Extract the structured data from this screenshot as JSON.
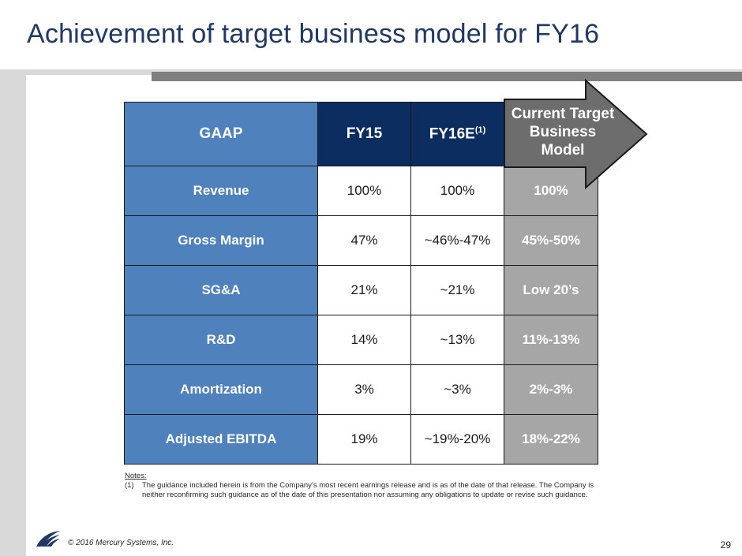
{
  "title": "Achievement of target business model for FY16",
  "table": {
    "headers": [
      "GAAP",
      "FY15",
      "FY16E",
      "Current Target Business Model"
    ],
    "header_superscript": "(1)",
    "target_header_lines": [
      "Current Target",
      "Business",
      "Model"
    ],
    "rows": [
      {
        "label": "Revenue",
        "fy15": "100%",
        "fy16e": "100%",
        "target": "100%"
      },
      {
        "label": "Gross Margin",
        "fy15": "47%",
        "fy16e": "~46%-47%",
        "target": "45%-50%"
      },
      {
        "label": "SG&A",
        "fy15": "21%",
        "fy16e": "~21%",
        "target": "Low 20’s"
      },
      {
        "label": "R&D",
        "fy15": "14%",
        "fy16e": "~13%",
        "target": "11%-13%"
      },
      {
        "label": "Amortization",
        "fy15": "3%",
        "fy16e": "~3%",
        "target": "2%-3%"
      },
      {
        "label": "Adjusted EBITDA",
        "fy15": "19%",
        "fy16e": "~19%-20%",
        "target": "18%-22%"
      }
    ]
  },
  "notes": {
    "heading": "Notes:",
    "items": [
      {
        "num": "(1)",
        "text": "The guidance included herein is from the Company’s most recent earnings release and is as of the date of that release. The Company is neither reconfirming such guidance as of the date of this presentation nor assuming any obligations to update or revise such guidance."
      }
    ]
  },
  "footer": {
    "copyright": "© 2016 Mercury Systems, Inc.",
    "page_number": "29"
  },
  "colors": {
    "title": "#1f3864",
    "gaap_blue": "#4f81bd",
    "header_navy": "#0b2d5f",
    "target_gray": "#7f7f7f",
    "target_cell_gray": "#a6a6a6"
  },
  "icons": {
    "logo": "mercury-logo-icon",
    "arrow": "right-arrow-shape"
  }
}
